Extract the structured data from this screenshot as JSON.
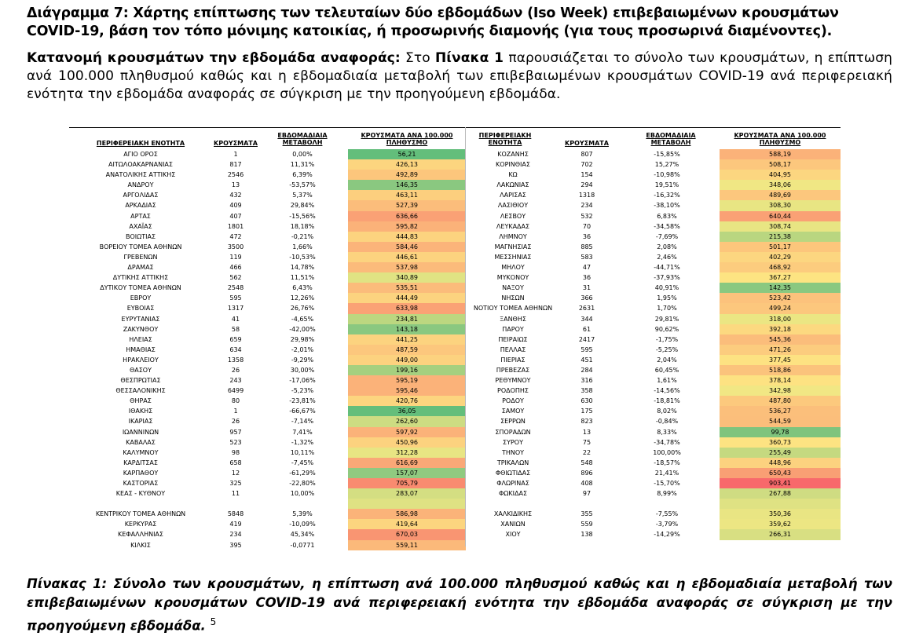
{
  "heading": "Διάγραμμα 7: Χάρτης επίπτωσης των τελευταίων δύο εβδομάδων (Iso Week) επιβεβαιωμένων κρουσμάτων COVID-19, βάση τον τόπο μόνιμης κατοικίας, ή προσωρινής διαμονής (για τους προσωρινά διαμένοντες).",
  "intro": {
    "lead": "Κατανομή κρουσμάτων την εβδομάδα αναφοράς",
    "colon": ":",
    "part1": " Στο ",
    "ref": "Πίνακα 1",
    "part2": " παρουσιάζεται το σύνολο των κρουσμάτων, η επίπτωση ανά 100.000 πληθυσμού καθώς και η εβδομαδιαία μεταβολή των επιβεβαιωμένων κρουσμάτων COVID-19 ανά περιφερειακή ενότητα την εβδομάδα αναφοράς σε σύγκριση με την προηγούμενη εβδομάδα."
  },
  "table": {
    "headers": {
      "unit": "ΠΕΡΙΦΕΡΕΙΑΚΗ ΕΝΟΤΗΤΑ",
      "cases": "ΚΡΟΥΣΜΑΤΑ",
      "change": "ΕΒΔΟΜΑΔΙΑΙΑ ΜΕΤΑΒΟΛΗ",
      "incidence": "ΚΡΟΥΣΜΑΤΑ ΑΝΑ 100.000 ΠΛΗΘΥΣΜΟ",
      "unit_r": "ΠΕΡΙΦΕΡΕΙΑΚΗ ΕΝΟΤΗΤΑ",
      "cases_r": "ΚΡΟΥΣΜΑΤΑ",
      "change_r": "ΕΒΔΟΜΑΔΙΑΙΑ ΜΕΤΑΒΟΛΗ",
      "incidence_r": "ΚΡΟΥΣΜΑΤΑ ΑΝΑ 100.000 ΠΛΗΘΥΣΜΟ"
    },
    "left": [
      [
        "ΑΓΙΟ ΟΡΟΣ",
        "1",
        "0,00%",
        "56,21"
      ],
      [
        "ΑΙΤΩΛΟΑΚΑΡΝΑΝΙΑΣ",
        "817",
        "11,31%",
        "426,13"
      ],
      [
        "ΑΝΑΤΟΛΙΚΗΣ ΑΤΤΙΚΗΣ",
        "2546",
        "6,39%",
        "492,89"
      ],
      [
        "ΑΝΔΡΟΥ",
        "13",
        "-53,57%",
        "146,35"
      ],
      [
        "ΑΡΓΟΛΙΔΑΣ",
        "432",
        "5,37%",
        "463,11"
      ],
      [
        "ΑΡΚΑΔΙΑΣ",
        "409",
        "29,84%",
        "527,39"
      ],
      [
        "ΑΡΤΑΣ",
        "407",
        "-15,56%",
        "636,66"
      ],
      [
        "ΑΧΑΪΑΣ",
        "1801",
        "18,18%",
        "595,82"
      ],
      [
        "ΒΟΙΩΤΙΑΣ",
        "472",
        "-0,21%",
        "444,83"
      ],
      [
        "ΒΟΡΕΙΟΥ ΤΟΜΕΑ ΑΘΗΝΩΝ",
        "3500",
        "1,66%",
        "584,46"
      ],
      [
        "ΓΡΕΒΕΝΩΝ",
        "119",
        "-10,53%",
        "446,61"
      ],
      [
        "ΔΡΑΜΑΣ",
        "466",
        "14,78%",
        "537,98"
      ],
      [
        "ΔΥΤΙΚΗΣ ΑΤΤΙΚΗΣ",
        "562",
        "11,51%",
        "340,89"
      ],
      [
        "ΔΥΤΙΚΟΥ ΤΟΜΕΑ ΑΘΗΝΩΝ",
        "2548",
        "6,43%",
        "535,51"
      ],
      [
        "ΕΒΡΟΥ",
        "595",
        "12,26%",
        "444,49"
      ],
      [
        "ΕΥΒΟΙΑΣ",
        "1317",
        "26,76%",
        "633,98"
      ],
      [
        "ΕΥΡΥΤΑΝΙΑΣ",
        "41",
        "-4,65%",
        "234,81"
      ],
      [
        "ΖΑΚΥΝΘΟΥ",
        "58",
        "-42,00%",
        "143,18"
      ],
      [
        "ΗΛΕΙΑΣ",
        "659",
        "29,98%",
        "441,25"
      ],
      [
        "ΗΜΑΘΙΑΣ",
        "634",
        "-2,01%",
        "487,59"
      ],
      [
        "ΗΡΑΚΛΕΙΟΥ",
        "1358",
        "-9,29%",
        "449,00"
      ],
      [
        "ΘΑΣΟΥ",
        "26",
        "30,00%",
        "199,16"
      ],
      [
        "ΘΕΣΠΡΩΤΙΑΣ",
        "243",
        "-17,06%",
        "595,19"
      ],
      [
        "ΘΕΣΣΑΛΟΝΙΚΗΣ",
        "6499",
        "-5,23%",
        "595,46"
      ],
      [
        "ΘΗΡΑΣ",
        "80",
        "-23,81%",
        "420,76"
      ],
      [
        "ΙΘΑΚΗΣ",
        "1",
        "-66,67%",
        "36,05"
      ],
      [
        "ΙΚΑΡΙΑΣ",
        "26",
        "-7,14%",
        "262,60"
      ],
      [
        "ΙΩΑΝΝΙΝΩΝ",
        "957",
        "7,41%",
        "597,92"
      ],
      [
        "ΚΑΒΑΛΑΣ",
        "523",
        "-1,32%",
        "450,96"
      ],
      [
        "ΚΑΛΥΜΝΟΥ",
        "98",
        "10,11%",
        "312,28"
      ],
      [
        "ΚΑΡΔΙΤΣΑΣ",
        "658",
        "-7,45%",
        "616,69"
      ],
      [
        "ΚΑΡΠΑΘΟΥ",
        "12",
        "-61,29%",
        "157,07"
      ],
      [
        "ΚΑΣΤΟΡΙΑΣ",
        "325",
        "-22,80%",
        "705,79"
      ],
      [
        "ΚΕΑΣ - ΚΥΘΝΟΥ",
        "11",
        "10,00%",
        "283,07"
      ],
      [
        "",
        "",
        "",
        ""
      ],
      [
        "ΚΕΝΤΡΙΚΟΥ ΤΟΜΕΑ ΑΘΗΝΩΝ",
        "5848",
        "5,39%",
        "586,98"
      ],
      [
        "ΚΕΡΚΥΡΑΣ",
        "419",
        "-10,09%",
        "419,64"
      ],
      [
        "ΚΕΦΑΛΛΗΝΙΑΣ",
        "234",
        "45,34%",
        "670,03"
      ],
      [
        "ΚΙΛΚΙΣ",
        "395",
        "-0,0771",
        "559,11"
      ]
    ],
    "left_colors": [
      "#63be7b",
      "#fcd57f",
      "#fcc67c",
      "#8ac880",
      "#fccf7e",
      "#fbbd7b",
      "#faa175",
      "#fbb279",
      "#fcd37f",
      "#fbb47a",
      "#fcd37f",
      "#fbbb7b",
      "#e0e383",
      "#fbbc7b",
      "#fcd37f",
      "#faa275",
      "#bcd780",
      "#8ac880",
      "#fcd37f",
      "#fcc77d",
      "#fcd27f",
      "#a5d07f",
      "#fbb279",
      "#fbb279",
      "#fcd57f",
      "#63be7b",
      "#cddc82",
      "#fbb279",
      "#fcd27f",
      "#e8e583",
      "#faa877",
      "#90ca80",
      "#f98b70",
      "#d4de82",
      "#fcdc81",
      "#fbb379",
      "#fcd57f",
      "#f99572",
      "#fbb97a"
    ],
    "right": [
      [
        "ΚΟΖΑΝΗΣ",
        "807",
        "-15,85%",
        "588,19"
      ],
      [
        "ΚΟΡΙΝΘΙΑΣ",
        "702",
        "15,27%",
        "508,17"
      ],
      [
        "ΚΩ",
        "154",
        "-10,98%",
        "404,95"
      ],
      [
        "ΛΑΚΩΝΙΑΣ",
        "294",
        "19,51%",
        "348,06"
      ],
      [
        "ΛΑΡΙΣΑΣ",
        "1318",
        "-16,32%",
        "489,69"
      ],
      [
        "ΛΑΣΙΘΙΟΥ",
        "234",
        "-38,10%",
        "308,30"
      ],
      [
        "ΛΕΣΒΟΥ",
        "532",
        "6,83%",
        "640,44"
      ],
      [
        "ΛΕΥΚΑΔΑΣ",
        "70",
        "-34,58%",
        "308,74"
      ],
      [
        "ΛΗΜΝΟΥ",
        "36",
        "-7,69%",
        "215,38"
      ],
      [
        "ΜΑΓΝΗΣΙΑΣ",
        "885",
        "2,08%",
        "501,17"
      ],
      [
        "ΜΕΣΣΗΝΙΑΣ",
        "583",
        "2,46%",
        "402,29"
      ],
      [
        "ΜΗΛΟΥ",
        "47",
        "-44,71%",
        "468,92"
      ],
      [
        "ΜΥΚΟΝΟΥ",
        "36",
        "-37,93%",
        "367,27"
      ],
      [
        "ΝΑΞΟΥ",
        "31",
        "40,91%",
        "142,35"
      ],
      [
        "ΝΗΣΩΝ",
        "366",
        "1,95%",
        "523,42"
      ],
      [
        "ΝΟΤΙΟΥ ΤΟΜΕΑ ΑΘΗΝΩΝ",
        "2631",
        "1,70%",
        "499,24"
      ],
      [
        "ΞΑΝΘΗΣ",
        "344",
        "29,81%",
        "318,00"
      ],
      [
        "ΠΑΡΟΥ",
        "61",
        "90,62%",
        "392,18"
      ],
      [
        "ΠΕΙΡΑΙΩΣ",
        "2417",
        "-1,75%",
        "545,36"
      ],
      [
        "ΠΕΛΛΑΣ",
        "595",
        "-5,25%",
        "471,26"
      ],
      [
        "ΠΙΕΡΙΑΣ",
        "451",
        "2,04%",
        "377,45"
      ],
      [
        "ΠΡΕΒΕΖΑΣ",
        "284",
        "60,45%",
        "518,86"
      ],
      [
        "ΡΕΘΥΜΝΟΥ",
        "316",
        "1,61%",
        "378,14"
      ],
      [
        "ΡΟΔΟΠΗΣ",
        "358",
        "-14,56%",
        "342,98"
      ],
      [
        "ΡΟΔΟΥ",
        "630",
        "-18,81%",
        "487,80"
      ],
      [
        "ΣΑΜΟΥ",
        "175",
        "8,02%",
        "536,27"
      ],
      [
        "ΣΕΡΡΩΝ",
        "823",
        "-0,84%",
        "544,59"
      ],
      [
        "ΣΠΟΡΑΔΩΝ",
        "13",
        "8,33%",
        "99,78"
      ],
      [
        "ΣΥΡΟΥ",
        "75",
        "-34,78%",
        "360,73"
      ],
      [
        "ΤΗΝΟΥ",
        "22",
        "100,00%",
        "255,49"
      ],
      [
        "ΤΡΙΚΑΛΩΝ",
        "548",
        "-18,57%",
        "448,96"
      ],
      [
        "ΦΘΙΩΤΙΔΑΣ",
        "896",
        "21,41%",
        "650,43"
      ],
      [
        "ΦΛΩΡΙΝΑΣ",
        "408",
        "-15,70%",
        "903,41"
      ],
      [
        "ΦΩΚΙΔΑΣ",
        "97",
        "8,99%",
        "267,88"
      ],
      [
        "",
        "",
        "",
        ""
      ],
      [
        "ΧΑΛΚΙΔΙΚΗΣ",
        "355",
        "-7,55%",
        "350,36"
      ],
      [
        "ΧΑΝΙΩΝ",
        "559",
        "-3,79%",
        "359,62"
      ],
      [
        "ΧΙΟΥ",
        "138",
        "-14,29%",
        "266,31"
      ],
      [
        "",
        "",
        "",
        ""
      ]
    ],
    "right_colors": [
      "#fbb279",
      "#fcc77d",
      "#fcd680",
      "#f0e784",
      "#fcc77d",
      "#e8e583",
      "#faa175",
      "#e8e583",
      "#b9d680",
      "#fcc67c",
      "#fcd680",
      "#fccc7e",
      "#fde482",
      "#8ac880",
      "#fcc27c",
      "#fcc77d",
      "#ebe683",
      "#fcd980",
      "#fbbd7b",
      "#fccc7e",
      "#fde282",
      "#fbc37c",
      "#fde282",
      "#f1e784",
      "#fcc97d",
      "#fbbf7b",
      "#fbbe7b",
      "#7fc47d",
      "#fde382",
      "#c5d980",
      "#fcd27f",
      "#f99f74",
      "#f8696b",
      "#cfdc82",
      "#dde182",
      "#e9e583",
      "#ece683",
      "#d8df82",
      "#ffffff"
    ],
    "spacer_color": "#dfe283"
  },
  "caption": {
    "text": "Πίνακας 1: Σύνολο των κρουσμάτων, η επίπτωση ανά 100.000 πληθυσμού καθώς και η εβδομαδιαία μεταβολή των επιβεβαιωμένων κρουσμάτων COVID-19 ανά περιφερειακή ενότητα την εβδομάδα αναφοράς σε σύγκριση με την προηγούμενη εβδομάδα.",
    "footnote": "5"
  }
}
